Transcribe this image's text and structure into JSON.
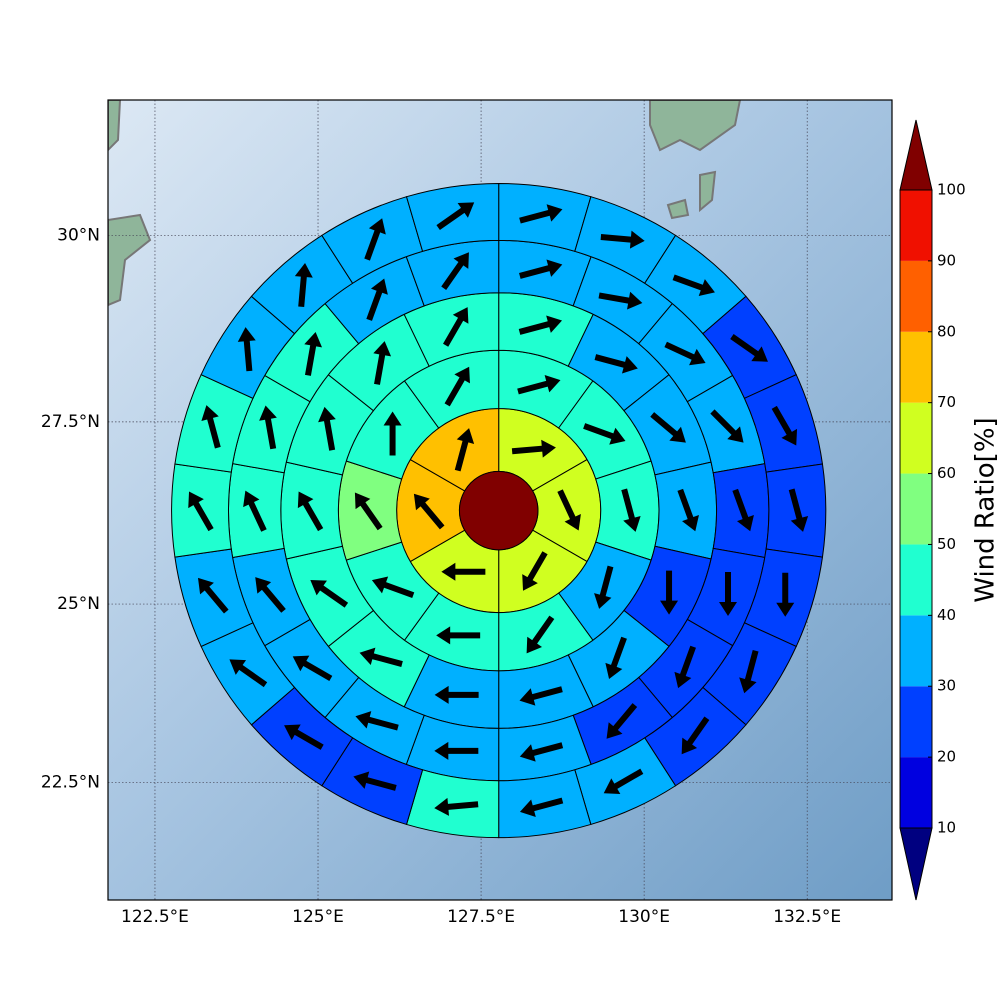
{
  "chart_data": {
    "type": "polar_sector_map",
    "xlim": [
      121.78,
      133.8
    ],
    "ylim": [
      20.83,
      31.78
    ],
    "projection": "mercator",
    "grid": true,
    "xticks": [
      {
        "value": 122.5,
        "label": "122.5°E"
      },
      {
        "value": 125,
        "label": "125°E"
      },
      {
        "value": 127.5,
        "label": "127.5°E"
      },
      {
        "value": 130,
        "label": "130°E"
      },
      {
        "value": 132.5,
        "label": "132.5°E"
      }
    ],
    "yticks": [
      {
        "value": 22.5,
        "label": "22.5°N"
      },
      {
        "value": 25,
        "label": "25°N"
      },
      {
        "value": 27.5,
        "label": "27.5°N"
      },
      {
        "value": 30,
        "label": "30°N"
      }
    ],
    "colorbar": {
      "label": "Wind Ratio[%]",
      "levels": [
        10,
        20,
        30,
        40,
        50,
        60,
        70,
        80,
        90,
        100
      ],
      "colors": [
        "#0000e0",
        "#0040ff",
        "#00b0ff",
        "#20ffd0",
        "#80ff80",
        "#d0ff20",
        "#ffc000",
        "#ff6000",
        "#f01000"
      ],
      "under_color": "#000080",
      "over_color": "#800000"
    },
    "center": {
      "lon": 127.77,
      "lat": 26.29,
      "radius_km": 60,
      "value": 105
    },
    "rings": [
      {
        "inner_km": 60,
        "outer_km": 156,
        "values": [
          64,
          63,
          62,
          61,
          71,
          73
        ],
        "directions": [
          85,
          155,
          210,
          270,
          320,
          15
        ]
      },
      {
        "inner_km": 156,
        "outer_km": 245,
        "values": [
          45,
          44,
          43,
          35,
          44,
          42,
          42,
          55,
          45,
          46
        ],
        "directions": [
          75,
          110,
          165,
          195,
          215,
          270,
          290,
          325,
          0,
          30
        ]
      },
      {
        "inner_km": 245,
        "outer_km": 333,
        "values": [
          44,
          38,
          36,
          35,
          22,
          35,
          35,
          36,
          44,
          43,
          44,
          45,
          44,
          45
        ],
        "directions": [
          75,
          105,
          130,
          160,
          180,
          200,
          255,
          270,
          285,
          305,
          330,
          350,
          10,
          30
        ]
      },
      {
        "inner_km": 333,
        "outer_km": 413,
        "values": [
          36,
          35,
          36,
          35,
          24,
          24,
          24,
          25,
          35,
          35,
          36,
          35,
          36,
          44,
          44,
          45,
          36,
          35
        ],
        "directions": [
          75,
          100,
          115,
          135,
          160,
          180,
          200,
          220,
          255,
          270,
          285,
          300,
          320,
          335,
          350,
          10,
          20,
          35
        ]
      },
      {
        "inner_km": 413,
        "outer_km": 500,
        "values": [
          35,
          36,
          34,
          25,
          25,
          24,
          25,
          24,
          25,
          35,
          36,
          44,
          24,
          23,
          35,
          36,
          44,
          44,
          35,
          36,
          35,
          35
        ],
        "directions": [
          75,
          95,
          110,
          125,
          150,
          165,
          180,
          195,
          215,
          240,
          255,
          265,
          285,
          300,
          305,
          320,
          330,
          345,
          355,
          5,
          20,
          55
        ]
      }
    ]
  }
}
